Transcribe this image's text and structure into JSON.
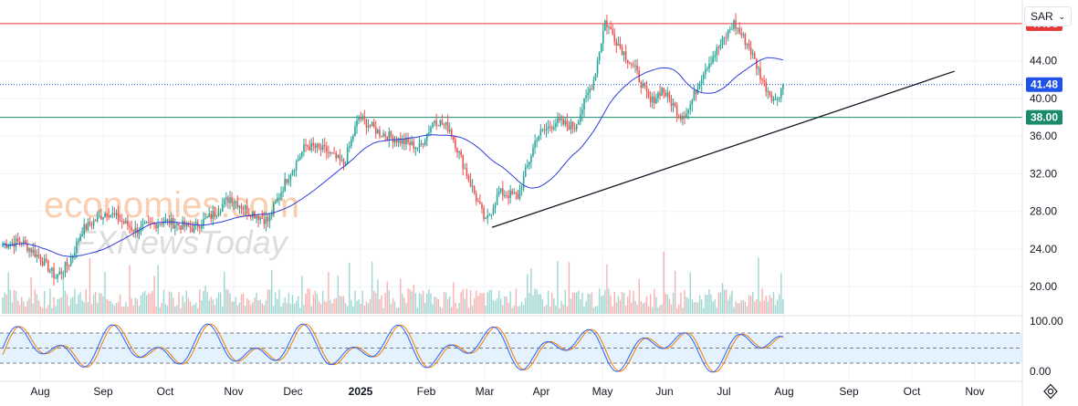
{
  "currency": {
    "label": "SAR",
    "chevron": "⌄"
  },
  "watermark": {
    "brand": "economies.com",
    "sub": "FXNewsToday"
  },
  "colors": {
    "up": "#26a69a",
    "down": "#ef5350",
    "ma": "#2e3fd6",
    "resistance": "#e53935",
    "support": "#1b8a6b",
    "current": "#1e53e5",
    "stoch_k": "#2962ff",
    "stoch_d": "#f57c00",
    "band": "#e3f2fd"
  },
  "chart_data": {
    "type": "candlestick",
    "price_axis": {
      "ticks": [
        "44.00",
        "40.00",
        "36.00",
        "32.00",
        "28.00",
        "24.00",
        "20.00"
      ],
      "range": [
        17.5,
        49.5
      ]
    },
    "time_axis": {
      "ticks": [
        "Aug",
        "Sep",
        "Oct",
        "Nov",
        "Dec",
        "2025",
        "Feb",
        "Mar",
        "Apr",
        "May",
        "Jun",
        "Jul",
        "Aug",
        "Sep",
        "Oct",
        "Nov"
      ]
    },
    "levels": {
      "resistance": "47.96",
      "current": "41.48",
      "support": "38.00"
    },
    "trendline": {
      "from": {
        "date": "2025-03-05",
        "price": 26.3
      },
      "to": {
        "date": "2025-10-22",
        "price": 42.9
      }
    },
    "price_path": [
      [
        0,
        24.5
      ],
      [
        10,
        24.8
      ],
      [
        20,
        23.0
      ],
      [
        28,
        21.0
      ],
      [
        35,
        22.5
      ],
      [
        42,
        26.0
      ],
      [
        55,
        28.0
      ],
      [
        70,
        26.0
      ],
      [
        85,
        27.0
      ],
      [
        100,
        26.2
      ],
      [
        110,
        27.5
      ],
      [
        120,
        29.5
      ],
      [
        130,
        28.0
      ],
      [
        140,
        27.0
      ],
      [
        150,
        31.5
      ],
      [
        160,
        35.0
      ],
      [
        170,
        34.5
      ],
      [
        180,
        33.0
      ],
      [
        188,
        38.0
      ],
      [
        198,
        36.5
      ],
      [
        210,
        35.5
      ],
      [
        220,
        34.8
      ],
      [
        228,
        37.8
      ],
      [
        236,
        36.8
      ],
      [
        245,
        32.0
      ],
      [
        255,
        26.8
      ],
      [
        262,
        30.0
      ],
      [
        272,
        29.6
      ],
      [
        282,
        36.0
      ],
      [
        292,
        37.5
      ],
      [
        302,
        37.0
      ],
      [
        312,
        42.0
      ],
      [
        318,
        48.2
      ],
      [
        326,
        45.5
      ],
      [
        334,
        43.0
      ],
      [
        342,
        39.5
      ],
      [
        348,
        41.0
      ],
      [
        358,
        38.2
      ],
      [
        362,
        38.8
      ],
      [
        370,
        43.0
      ],
      [
        380,
        46.0
      ],
      [
        386,
        48.0
      ],
      [
        394,
        45.5
      ],
      [
        402,
        41.5
      ],
      [
        408,
        39.7
      ],
      [
        412,
        41.5
      ]
    ],
    "stochastic": {
      "ticks": [
        "100.00",
        "0.00"
      ],
      "upper_band": 80,
      "lower_band": 20,
      "middle": 50
    }
  }
}
